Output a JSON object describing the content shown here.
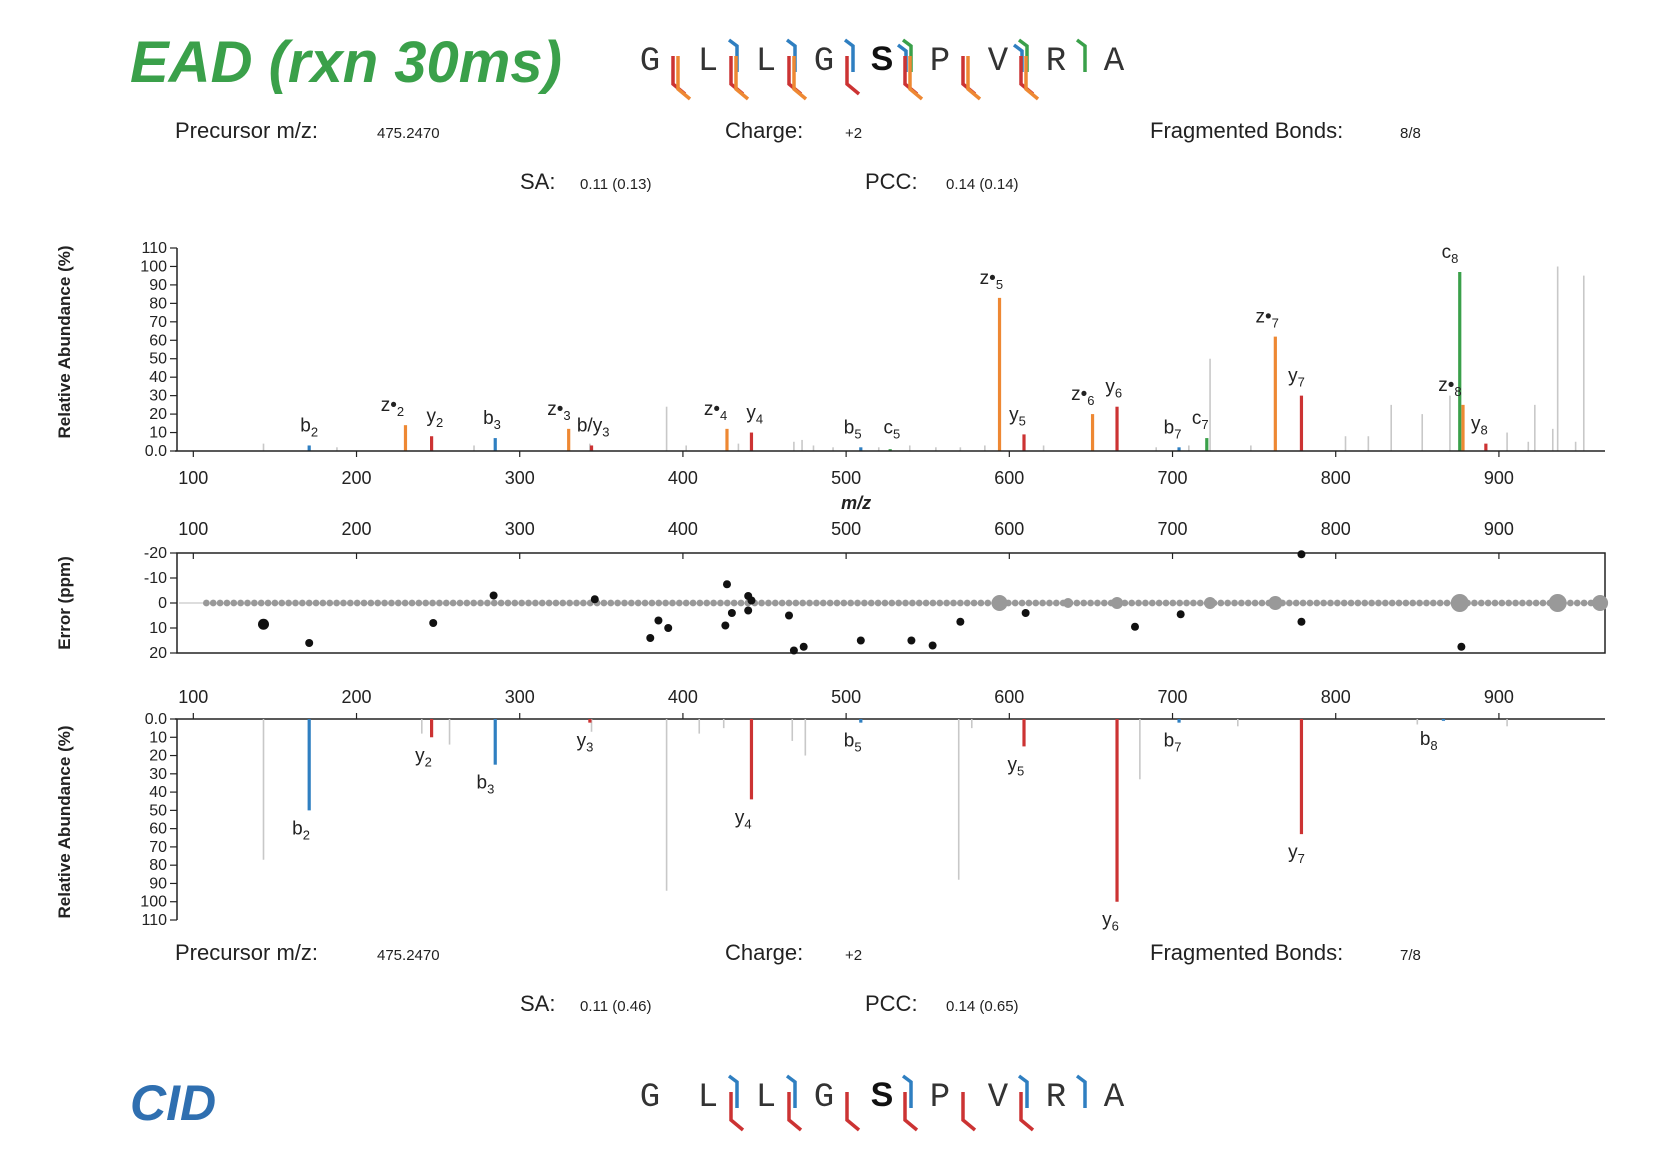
{
  "ead": {
    "title": "EAD (rxn 30ms)",
    "title_color": "#3aa04a",
    "precursor_label": "Precursor m/z:",
    "precursor_value": "475.2470",
    "charge_label": "Charge:",
    "charge_value": "+2",
    "bonds_label": "Fragmented Bonds:",
    "bonds_value": "8/8",
    "sa_label": "SA:",
    "sa_value": "0.11 (0.13)",
    "pcc_label": "PCC:",
    "pcc_value": "0.14 (0.14)",
    "sequence": [
      "G",
      "L",
      "L",
      "G",
      "S",
      "P",
      "V",
      "R",
      "A"
    ],
    "bold_residue": 4,
    "c_term_marks": [
      {
        "after": 0,
        "colors": []
      },
      {
        "after": 1,
        "colors": [
          "#2f7fc1"
        ]
      },
      {
        "after": 2,
        "colors": [
          "#2f7fc1"
        ]
      },
      {
        "after": 3,
        "colors": [
          "#2f7fc1"
        ]
      },
      {
        "after": 4,
        "colors": [
          "#3aa04a",
          "#2f7fc1"
        ]
      },
      {
        "after": 5,
        "colors": []
      },
      {
        "after": 6,
        "colors": [
          "#3aa04a",
          "#2f7fc1"
        ]
      },
      {
        "after": 7,
        "colors": [
          "#3aa04a"
        ]
      }
    ],
    "n_term_marks": [
      {
        "after": 0,
        "colors": [
          "#cc3333",
          "#ee8833"
        ]
      },
      {
        "after": 1,
        "colors": [
          "#cc3333",
          "#ee8833"
        ]
      },
      {
        "after": 2,
        "colors": [
          "#cc3333",
          "#ee8833"
        ]
      },
      {
        "after": 3,
        "colors": [
          "#cc3333"
        ]
      },
      {
        "after": 4,
        "colors": [
          "#cc3333",
          "#ee8833"
        ]
      },
      {
        "after": 5,
        "colors": [
          "#cc3333",
          "#ee8833"
        ]
      },
      {
        "after": 6,
        "colors": [
          "#cc3333",
          "#ee8833"
        ]
      },
      {
        "after": 7,
        "colors": []
      }
    ]
  },
  "cid": {
    "title": "CID",
    "title_color": "#2f6fb0",
    "precursor_label": "Precursor m/z:",
    "precursor_value": "475.2470",
    "charge_label": "Charge:",
    "charge_value": "+2",
    "bonds_label": "Fragmented Bonds:",
    "bonds_value": "7/8",
    "sa_label": "SA:",
    "sa_value": "0.11 (0.46)",
    "pcc_label": "PCC:",
    "pcc_value": "0.14 (0.65)",
    "sequence": [
      "G",
      "L",
      "L",
      "G",
      "S",
      "P",
      "V",
      "R",
      "A"
    ],
    "bold_residue": 4,
    "c_term_marks": [
      {
        "after": 0,
        "colors": []
      },
      {
        "after": 1,
        "colors": [
          "#2f7fc1"
        ]
      },
      {
        "after": 2,
        "colors": [
          "#2f7fc1"
        ]
      },
      {
        "after": 3,
        "colors": []
      },
      {
        "after": 4,
        "colors": [
          "#2f7fc1"
        ]
      },
      {
        "after": 5,
        "colors": []
      },
      {
        "after": 6,
        "colors": [
          "#2f7fc1"
        ]
      },
      {
        "after": 7,
        "colors": [
          "#2f7fc1"
        ]
      }
    ],
    "n_term_marks": [
      {
        "after": 0,
        "colors": []
      },
      {
        "after": 1,
        "colors": [
          "#cc3333"
        ]
      },
      {
        "after": 2,
        "colors": [
          "#cc3333"
        ]
      },
      {
        "after": 3,
        "colors": [
          "#cc3333"
        ]
      },
      {
        "after": 4,
        "colors": [
          "#cc3333"
        ]
      },
      {
        "after": 5,
        "colors": [
          "#cc3333"
        ]
      },
      {
        "after": 6,
        "colors": [
          "#cc3333"
        ]
      },
      {
        "after": 7,
        "colors": []
      }
    ]
  },
  "chart_data": [
    {
      "type": "bar",
      "name": "ead-spectrum",
      "xlabel": "m/z",
      "ylabel": "Relative Abundance (%)",
      "xlim": [
        90,
        965
      ],
      "ylim": [
        0,
        110
      ],
      "x_ticks": [
        100,
        200,
        300,
        400,
        500,
        600,
        700,
        800,
        900
      ],
      "y_ticks": [
        "0.0",
        "10",
        "20",
        "30",
        "40",
        "50",
        "60",
        "70",
        "80",
        "90",
        "100",
        "110"
      ],
      "unmatched_color": "#c8c8c8",
      "unmatched_peaks": [
        [
          143,
          4
        ],
        [
          188,
          2
        ],
        [
          272,
          3
        ],
        [
          343,
          4
        ],
        [
          390,
          24
        ],
        [
          402,
          3
        ],
        [
          434,
          4
        ],
        [
          468,
          5
        ],
        [
          473,
          6
        ],
        [
          480,
          3
        ],
        [
          492,
          2
        ],
        [
          520,
          2
        ],
        [
          539,
          3
        ],
        [
          555,
          2
        ],
        [
          570,
          2
        ],
        [
          585,
          3
        ],
        [
          621,
          3
        ],
        [
          690,
          2
        ],
        [
          710,
          3
        ],
        [
          723,
          50
        ],
        [
          748,
          3
        ],
        [
          806,
          8
        ],
        [
          820,
          8
        ],
        [
          834,
          25
        ],
        [
          853,
          20
        ],
        [
          870,
          30
        ],
        [
          905,
          10
        ],
        [
          918,
          5
        ],
        [
          922,
          25
        ],
        [
          933,
          12
        ],
        [
          936,
          100
        ],
        [
          947,
          5
        ],
        [
          952,
          95
        ]
      ],
      "peaks": [
        {
          "x": 171,
          "y": 3,
          "color": "#2f7fc1",
          "label": "b2"
        },
        {
          "x": 230,
          "y": 14,
          "color": "#ee8833",
          "label": "z•2"
        },
        {
          "x": 246,
          "y": 8,
          "color": "#cc3333",
          "label": "y2"
        },
        {
          "x": 285,
          "y": 7,
          "color": "#2f7fc1",
          "label": "b3"
        },
        {
          "x": 330,
          "y": 12,
          "color": "#ee8833",
          "label": "z•3"
        },
        {
          "x": 344,
          "y": 3,
          "color": "#cc3333",
          "label": "b/y3"
        },
        {
          "x": 427,
          "y": 12,
          "color": "#ee8833",
          "label": "z•4"
        },
        {
          "x": 442,
          "y": 10,
          "color": "#cc3333",
          "label": "y4"
        },
        {
          "x": 509,
          "y": 2,
          "color": "#2f7fc1",
          "label": "b5"
        },
        {
          "x": 527,
          "y": 1,
          "color": "#3aa04a",
          "label": "c5"
        },
        {
          "x": 594,
          "y": 83,
          "color": "#ee8833",
          "label": "z•5"
        },
        {
          "x": 609,
          "y": 9,
          "color": "#cc3333",
          "label": "y5"
        },
        {
          "x": 651,
          "y": 20,
          "color": "#ee8833",
          "label": "z•6"
        },
        {
          "x": 666,
          "y": 24,
          "color": "#cc3333",
          "label": "y6"
        },
        {
          "x": 704,
          "y": 2,
          "color": "#2f7fc1",
          "label": "b7"
        },
        {
          "x": 721,
          "y": 7,
          "color": "#3aa04a",
          "label": "c7"
        },
        {
          "x": 763,
          "y": 62,
          "color": "#ee8833",
          "label": "z•7"
        },
        {
          "x": 779,
          "y": 30,
          "color": "#cc3333",
          "label": "y7"
        },
        {
          "x": 876,
          "y": 97,
          "color": "#3aa04a",
          "label": "c8"
        },
        {
          "x": 878,
          "y": 25,
          "color": "#ee8833",
          "label": "z•8"
        },
        {
          "x": 892,
          "y": 4,
          "color": "#cc3333",
          "label": "y8"
        }
      ]
    },
    {
      "type": "scatter",
      "name": "mass-error",
      "ylabel": "Error (ppm)",
      "xlim": [
        90,
        965
      ],
      "ylim": [
        -20,
        20
      ],
      "y_ticks": [
        "-20",
        "-10",
        "0",
        "10",
        "20"
      ],
      "x_ticks": [
        100,
        200,
        300,
        400,
        500,
        600,
        700,
        800,
        900
      ],
      "matched_points": [
        [
          143,
          8.5,
          "big"
        ],
        [
          171,
          16
        ],
        [
          247,
          8
        ],
        [
          284,
          -3
        ],
        [
          346,
          -1.5
        ],
        [
          380,
          14
        ],
        [
          385,
          7
        ],
        [
          391,
          10
        ],
        [
          427,
          -7.5
        ],
        [
          426,
          9
        ],
        [
          430,
          4
        ],
        [
          440,
          -2.8
        ],
        [
          442,
          -1
        ],
        [
          440,
          3
        ],
        [
          465,
          5
        ],
        [
          468,
          19
        ],
        [
          474,
          17.5
        ],
        [
          509,
          15
        ],
        [
          540,
          15
        ],
        [
          553,
          17
        ],
        [
          570,
          7.5
        ],
        [
          610,
          4
        ],
        [
          677,
          9.5
        ],
        [
          705,
          4.5
        ],
        [
          779,
          -19.5
        ],
        [
          779,
          7.5
        ],
        [
          877,
          17.5
        ]
      ],
      "unmatched_x_range": [
        100,
        965
      ]
    },
    {
      "type": "bar",
      "name": "cid-spectrum",
      "xlabel": "",
      "ylabel": "Relative Abundance (%)",
      "xlim": [
        90,
        965
      ],
      "ylim": [
        0,
        110
      ],
      "inverted": true,
      "x_ticks": [
        100,
        200,
        300,
        400,
        500,
        600,
        700,
        800,
        900
      ],
      "y_ticks": [
        "0.0",
        "10",
        "20",
        "30",
        "40",
        "50",
        "60",
        "70",
        "80",
        "90",
        "100",
        "110"
      ],
      "unmatched_color": "#c8c8c8",
      "unmatched_peaks": [
        [
          143,
          77
        ],
        [
          240,
          8
        ],
        [
          257,
          14
        ],
        [
          344,
          7
        ],
        [
          390,
          94
        ],
        [
          410,
          8
        ],
        [
          425,
          5
        ],
        [
          467,
          12
        ],
        [
          475,
          20
        ],
        [
          569,
          88
        ],
        [
          577,
          5
        ],
        [
          680,
          33
        ],
        [
          740,
          4
        ],
        [
          850,
          3
        ],
        [
          905,
          4
        ]
      ],
      "peaks": [
        {
          "x": 171,
          "y": 50,
          "color": "#2f7fc1",
          "label": "b2"
        },
        {
          "x": 246,
          "y": 10,
          "color": "#cc3333",
          "label": "y2"
        },
        {
          "x": 285,
          "y": 25,
          "color": "#2f7fc1",
          "label": "b3"
        },
        {
          "x": 343,
          "y": 2,
          "color": "#cc3333",
          "label": "y3"
        },
        {
          "x": 442,
          "y": 44,
          "color": "#cc3333",
          "label": "y4"
        },
        {
          "x": 509,
          "y": 2,
          "color": "#2f7fc1",
          "label": "b5"
        },
        {
          "x": 609,
          "y": 15,
          "color": "#cc3333",
          "label": "y5"
        },
        {
          "x": 666,
          "y": 100,
          "color": "#cc3333",
          "label": "y6"
        },
        {
          "x": 704,
          "y": 2,
          "color": "#2f7fc1",
          "label": "b7"
        },
        {
          "x": 779,
          "y": 63,
          "color": "#cc3333",
          "label": "y7"
        },
        {
          "x": 866,
          "y": 1,
          "color": "#2f7fc1",
          "label": "b8"
        }
      ]
    }
  ],
  "labels": {
    "ead_ion_labels": [
      {
        "text": "b",
        "sub": "2",
        "x": 171,
        "y": 3
      },
      {
        "text": "z•",
        "sub": "2",
        "x": 222,
        "y": 14
      },
      {
        "text": "y",
        "sub": "2",
        "x": 248,
        "y": 8
      },
      {
        "text": "b",
        "sub": "3",
        "x": 283,
        "y": 7
      },
      {
        "text": "z•",
        "sub": "3",
        "x": 324,
        "y": 12
      },
      {
        "text": "b/y",
        "sub": "3",
        "x": 345,
        "y": 3
      },
      {
        "text": "z•",
        "sub": "4",
        "x": 420,
        "y": 12
      },
      {
        "text": "y",
        "sub": "4",
        "x": 444,
        "y": 10
      },
      {
        "text": "b",
        "sub": "5",
        "x": 504,
        "y": 2
      },
      {
        "text": "c",
        "sub": "5",
        "x": 528,
        "y": 2
      },
      {
        "text": "z•",
        "sub": "5",
        "x": 589,
        "y": 83
      },
      {
        "text": "y",
        "sub": "5",
        "x": 605,
        "y": 9
      },
      {
        "text": "z•",
        "sub": "6",
        "x": 645,
        "y": 20
      },
      {
        "text": "y",
        "sub": "6",
        "x": 664,
        "y": 24
      },
      {
        "text": "b",
        "sub": "7",
        "x": 700,
        "y": 2
      },
      {
        "text": "c",
        "sub": "7",
        "x": 717,
        "y": 7
      },
      {
        "text": "z•",
        "sub": "7",
        "x": 758,
        "y": 62
      },
      {
        "text": "y",
        "sub": "7",
        "x": 776,
        "y": 30
      },
      {
        "text": "c",
        "sub": "8",
        "x": 870,
        "y": 97
      },
      {
        "text": "z•",
        "sub": "8",
        "x": 870,
        "y": 25
      },
      {
        "text": "y",
        "sub": "8",
        "x": 888,
        "y": 4
      }
    ],
    "cid_ion_labels": [
      {
        "text": "b",
        "sub": "2",
        "x": 166,
        "y": 50
      },
      {
        "text": "y",
        "sub": "2",
        "x": 241,
        "y": 10
      },
      {
        "text": "b",
        "sub": "3",
        "x": 279,
        "y": 25
      },
      {
        "text": "y",
        "sub": "3",
        "x": 340,
        "y": 2
      },
      {
        "text": "y",
        "sub": "4",
        "x": 437,
        "y": 44
      },
      {
        "text": "b",
        "sub": "5",
        "x": 504,
        "y": 2
      },
      {
        "text": "y",
        "sub": "5",
        "x": 604,
        "y": 15
      },
      {
        "text": "y",
        "sub": "6",
        "x": 662,
        "y": 100
      },
      {
        "text": "b",
        "sub": "7",
        "x": 700,
        "y": 2
      },
      {
        "text": "y",
        "sub": "7",
        "x": 776,
        "y": 63
      },
      {
        "text": "b",
        "sub": "8",
        "x": 857,
        "y": 1
      }
    ]
  }
}
